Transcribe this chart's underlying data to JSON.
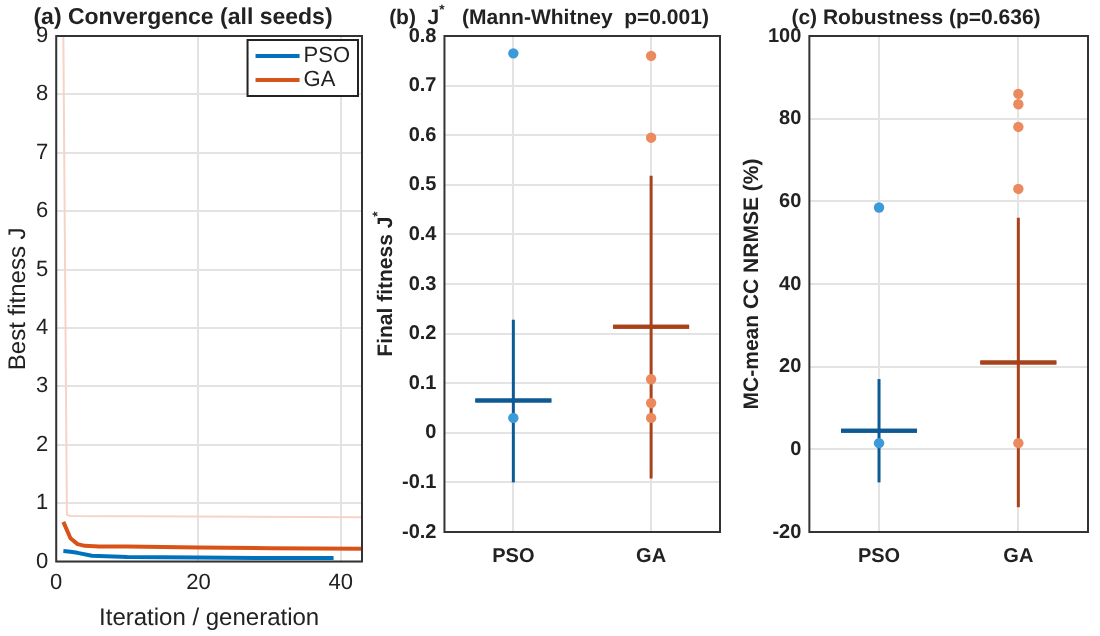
{
  "chart_data": [
    {
      "type": "line",
      "title": "(a) Convergence (all seeds)",
      "xlabel": "Iteration / generation",
      "ylabel": "Best fitness J",
      "xlim": [
        0,
        43
      ],
      "xticks": [
        0,
        20,
        40
      ],
      "ylim": [
        0,
        9
      ],
      "yticks": [
        0,
        1,
        2,
        3,
        4,
        5,
        6,
        7,
        8,
        9
      ],
      "grid": true,
      "legend": "top right",
      "marker": "none",
      "line_style": "solid",
      "series": [
        {
          "color": "#f6d3c6",
          "x": [
            1,
            1.5,
            2,
            43
          ],
          "values": [
            9,
            0.8,
            0.78,
            0.76
          ]
        },
        {
          "name": "PSO",
          "color": "#0072bd",
          "x": [
            1,
            2,
            3,
            5,
            10,
            20,
            30,
            39
          ],
          "values": [
            0.18,
            0.17,
            0.15,
            0.1,
            0.08,
            0.07,
            0.06,
            0.06
          ]
        },
        {
          "name": "GA",
          "color": "#d95319",
          "x": [
            1,
            2,
            3,
            4,
            6,
            10,
            20,
            30,
            43
          ],
          "values": [
            0.68,
            0.4,
            0.3,
            0.27,
            0.26,
            0.26,
            0.24,
            0.23,
            0.22
          ]
        }
      ]
    },
    {
      "type": "scatter",
      "title": "(b)  J$^{*}$   (Mann-Whitney  p=0.001)",
      "ylabel": "Final fitness J$^{*}$",
      "categories": [
        "PSO",
        "GA"
      ],
      "ylim": [
        -0.2,
        0.8
      ],
      "yticks": [
        -0.2,
        -0.1,
        0,
        0.1,
        0.2,
        0.3,
        0.4,
        0.5,
        0.6,
        0.7,
        0.8
      ],
      "grid": true,
      "marker": "circle",
      "series": [
        {
          "color": "#3d9ad8",
          "x": [
            "PSO",
            "PSO"
          ],
          "values": [
            0.765,
            0.03
          ]
        },
        {
          "color": "#ec8a5f",
          "x": [
            "GA",
            "GA",
            "GA",
            "GA",
            "GA"
          ],
          "values": [
            0.76,
            0.595,
            0.108,
            0.06,
            0.03
          ]
        },
        {
          "type": "box",
          "colors": [
            "#0e5a94",
            "#a8421b"
          ],
          "boxes": [
            {
              "low": -0.1,
              "q1": 0.065,
              "median": 0.065,
              "q3": 0.065,
              "high": 0.228
            },
            {
              "low": -0.092,
              "q1": 0.214,
              "median": 0.214,
              "q3": 0.214,
              "high": 0.518
            }
          ]
        }
      ]
    },
    {
      "type": "scatter",
      "title": "(c) Robustness (p=0.636)",
      "ylabel": "MC-mean CC NRMSE (%)",
      "categories": [
        "PSO",
        "GA"
      ],
      "ylim": [
        -20,
        100
      ],
      "yticks": [
        -20,
        0,
        20,
        40,
        60,
        80,
        100
      ],
      "grid": true,
      "marker": "circle",
      "series": [
        {
          "color": "#3d9ad8",
          "x": [
            "PSO",
            "PSO"
          ],
          "values": [
            58.5,
            1.5
          ]
        },
        {
          "color": "#ec8a5f",
          "x": [
            "GA",
            "GA",
            "GA",
            "GA",
            "GA"
          ],
          "values": [
            86,
            83.5,
            78,
            63,
            1.5
          ]
        },
        {
          "type": "box",
          "colors": [
            "#0e5a94",
            "#a8421b"
          ],
          "boxes": [
            {
              "low": -8,
              "q1": 4.5,
              "median": 4.5,
              "q3": 4.5,
              "high": 17
            },
            {
              "low": -14,
              "q1": 21,
              "median": 21,
              "q3": 21,
              "high": 56
            }
          ]
        }
      ]
    }
  ]
}
